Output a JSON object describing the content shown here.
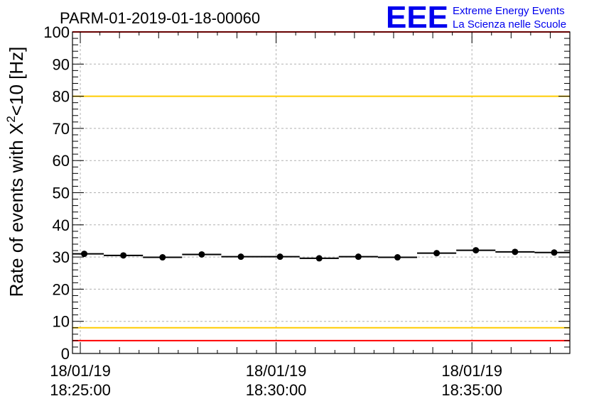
{
  "chart_data": {
    "type": "scatter",
    "title": "PARM-01-2019-01-18-00060",
    "ylabel": "Rate of events with X²<10 [Hz]",
    "ylabel_parts": {
      "before": "Rate of events with X",
      "sup": "2",
      "after": "<10 [Hz]"
    },
    "xlabel": "",
    "ylim": [
      0,
      100
    ],
    "y_major_ticks": [
      0,
      10,
      20,
      30,
      40,
      50,
      60,
      70,
      80,
      90,
      100
    ],
    "xlim_minutes": [
      -0.2,
      12.5
    ],
    "x_major_ticks": [
      {
        "t": 0,
        "date": "18/01/19",
        "time": "18:25:00"
      },
      {
        "t": 5,
        "date": "18/01/19",
        "time": "18:30:00"
      },
      {
        "t": 10,
        "date": "18/01/19",
        "time": "18:35:00"
      }
    ],
    "grid": true,
    "reference_lines": [
      {
        "y": 100,
        "color": "#ff0000"
      },
      {
        "y": 80,
        "color": "#ffcc00"
      },
      {
        "y": 8,
        "color": "#ffcc00"
      },
      {
        "y": 4,
        "color": "#ff0000"
      }
    ],
    "points": [
      {
        "t": 0.1,
        "y": 31.0
      },
      {
        "t": 1.1,
        "y": 30.5
      },
      {
        "t": 2.1,
        "y": 29.9
      },
      {
        "t": 3.1,
        "y": 30.8
      },
      {
        "t": 4.1,
        "y": 30.1
      },
      {
        "t": 5.1,
        "y": 30.1
      },
      {
        "t": 6.1,
        "y": 29.6
      },
      {
        "t": 7.1,
        "y": 30.1
      },
      {
        "t": 8.1,
        "y": 29.9
      },
      {
        "t": 9.1,
        "y": 31.2
      },
      {
        "t": 10.1,
        "y": 32.1
      },
      {
        "t": 11.1,
        "y": 31.6
      },
      {
        "t": 12.1,
        "y": 31.4
      }
    ],
    "bin_width_minutes": 1,
    "marker_color": "#000000"
  },
  "logo": {
    "big": "EEE",
    "line1": "Extreme Energy Events",
    "line2": "La Scienza nelle Scuole",
    "color": "#0000ee"
  }
}
